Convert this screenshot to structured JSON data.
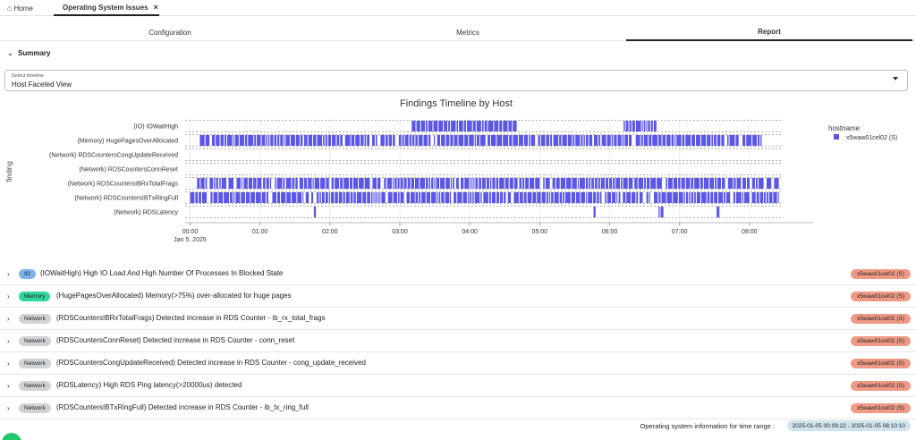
{
  "top_tabs": {
    "home_label": "Home",
    "active_label": "Operating System Issues",
    "close_glyph": "×"
  },
  "sub_tabs": [
    {
      "label": "Configuration"
    },
    {
      "label": "Metrics"
    },
    {
      "label": "Report",
      "active": true
    }
  ],
  "summary": {
    "label": "Summary"
  },
  "timeline_select": {
    "label": "Select timeline",
    "value": "Host Faceted View"
  },
  "chart_data": {
    "type": "timeline",
    "title": "Findings Timeline by Host",
    "ylabel": "finding",
    "xlabel": "",
    "x_ticks": [
      "00:00",
      "01:00",
      "02:00",
      "03:00",
      "04:00",
      "05:00",
      "06:00",
      "07:00",
      "08:00"
    ],
    "x_tick_sub": "Jan 5, 2025",
    "x_range": [
      -0.07,
      8.45
    ],
    "categories": [
      "(IO) IOWaitHigh",
      "(Memory) HugePagesOverAllocated",
      "(Network) RDSCountersCongUpdateReceived",
      "(Network) RDSCountersConnReset",
      "(Network) RDSCountersIBRxTotalFrags",
      "(Network) RDSCountersIBTxRingFull",
      "(Network) RDSLatency"
    ],
    "legend_title": "hostname",
    "legend_position": "top-right",
    "series": [
      {
        "name": "x5waw01cel02 (S)",
        "color": "#5b56e6",
        "spans": {
          "(IO) IOWaitHigh": [
            [
              3.17,
              4.68
            ],
            [
              6.2,
              6.67
            ]
          ],
          "(Memory) HugePagesOverAllocated": [
            [
              0.14,
              8.19
            ]
          ],
          "(Network) RDSCountersIBRxTotalFrags": [
            [
              0.1,
              8.42
            ]
          ],
          "(Network) RDSCountersIBTxRingFull": [
            [
              0.0,
              8.42
            ]
          ],
          "(Network) RDSLatency": [
            [
              1.77,
              1.8
            ],
            [
              5.77,
              5.8
            ],
            [
              6.7,
              6.77
            ],
            [
              7.53,
              7.57
            ]
          ]
        }
      }
    ],
    "grid": true
  },
  "findings": [
    {
      "tag": "IO",
      "tag_style": "io",
      "text": "(IOWaitHigh) High IO Load And High Number Of Processes In Blocked State",
      "host": "x5waw01cel02 (S)"
    },
    {
      "tag": "Memory",
      "tag_style": "memory",
      "text": "(HugePagesOverAllocated) Memory(>75%) over-allocated for huge pages",
      "host": "x5waw01cel02 (S)"
    },
    {
      "tag": "Network",
      "tag_style": "network",
      "text": "(RDSCountersIBRxTotalFrags) Detected increase in RDS Counter - ib_rx_total_frags",
      "host": "x5waw01cel02 (S)"
    },
    {
      "tag": "Network",
      "tag_style": "network",
      "text": "(RDSCountersConnReset) Detected increase in RDS Counter - conn_reset",
      "host": "x5waw01cel02 (S)"
    },
    {
      "tag": "Network",
      "tag_style": "network",
      "text": "(RDSCountersCongUpdateReceived) Detected increase in RDS Counter - cong_update_received",
      "host": "x5waw01cel02 (S)"
    },
    {
      "tag": "Network",
      "tag_style": "network",
      "text": "(RDSLatency) High RDS Ping latency(>20000us) detected",
      "host": "x5waw01cel02 (S)"
    },
    {
      "tag": "Network",
      "tag_style": "network",
      "text": "(RDSCountersIBTxRingFull) Detected increase in RDS Counter - ib_tx_ring_full",
      "host": "x5waw01cel02 (S)"
    }
  ],
  "footer": {
    "label": "Operating system information for time range :",
    "range": "2025-01-05 00:09:22 - 2025-01-05 08:10:10"
  }
}
